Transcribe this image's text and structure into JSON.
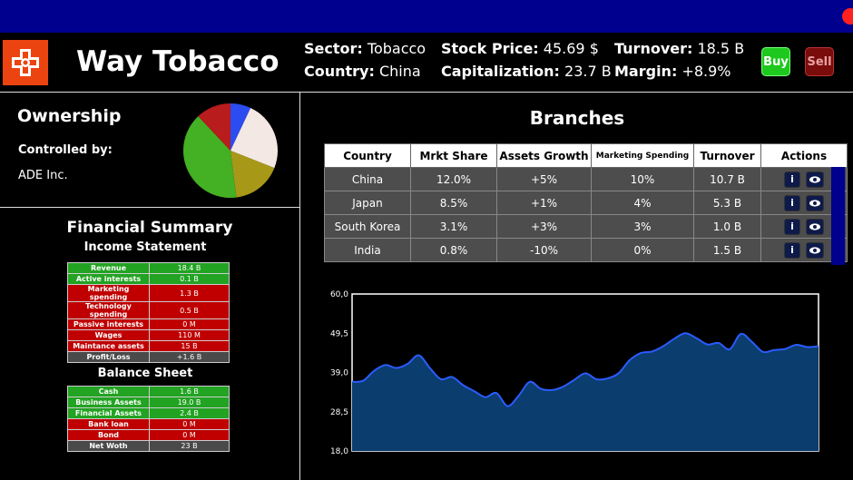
{
  "company": {
    "name": "Way Tobacco"
  },
  "stats": {
    "sector_label": "Sector:",
    "sector": "Tobacco",
    "country_label": "Country:",
    "country": "China",
    "price_label": "Stock Price:",
    "price": "45.69 $",
    "cap_label": "Capitalization:",
    "cap": "23.7 B",
    "turnover_label": "Turnover:",
    "turnover": "18.5 B",
    "margin_label": "Margin:",
    "margin": "+8.9%"
  },
  "buttons": {
    "buy": "Buy",
    "sell": "Sell"
  },
  "colors": {
    "buy": "#1ec81e",
    "sell": "#7a0c0c",
    "topbar": "#00008f",
    "logo": "#ec4410",
    "positive": "#22a322",
    "negative": "#c00000"
  },
  "ownership": {
    "title": "Ownership",
    "controlled_label": "Controlled by:",
    "controlled_value": "ADE Inc.",
    "pie_colors": [
      "#2a4cf0",
      "#f4e8e4",
      "#a89818",
      "#44b024",
      "#b81c1c"
    ],
    "pie_shares": [
      0.07,
      0.24,
      0.17,
      0.4,
      0.12
    ]
  },
  "financial": {
    "title": "Financial Summary",
    "income_title": "Income Statement",
    "income": [
      {
        "k": "Revenue",
        "v": "18.4 B",
        "s": "g"
      },
      {
        "k": "Active interests",
        "v": "0.1 B",
        "s": "g"
      },
      {
        "k": "Marketing spending",
        "v": "1.3 B",
        "s": "r"
      },
      {
        "k": "Technology spending",
        "v": "0.5 B",
        "s": "r"
      },
      {
        "k": "Passive interests",
        "v": "0 M",
        "s": "r"
      },
      {
        "k": "Wages",
        "v": "110 M",
        "s": "r"
      },
      {
        "k": "Maintance assets",
        "v": "15 B",
        "s": "r"
      },
      {
        "k": "Profit/Loss",
        "v": "+1.6 B",
        "s": "n"
      }
    ],
    "balance_title": "Balance Sheet",
    "balance": [
      {
        "k": "Cash",
        "v": "1.6 B",
        "s": "g"
      },
      {
        "k": "Business Assets",
        "v": "19.0 B",
        "s": "g"
      },
      {
        "k": "Financial Assets",
        "v": "2.4 B",
        "s": "g"
      },
      {
        "k": "Bank loan",
        "v": "0 M",
        "s": "r"
      },
      {
        "k": "Bond",
        "v": "0 M",
        "s": "r"
      },
      {
        "k": "Net Woth",
        "v": "23 B",
        "s": "n"
      }
    ]
  },
  "branches": {
    "title": "Branches",
    "headers": [
      "Country",
      "Mrkt Share",
      "Assets Growth",
      "Marketing Spending",
      "Turnover",
      "Actions"
    ],
    "rows": [
      [
        "China",
        "12.0%",
        "+5%",
        "10%",
        "10.7 B"
      ],
      [
        "Japan",
        "8.5%",
        "+1%",
        "4%",
        "5.3 B"
      ],
      [
        "South Korea",
        "3.1%",
        "+3%",
        "3%",
        "1.0 B"
      ],
      [
        "India",
        "0.8%",
        "-10%",
        "0%",
        "1.5 B"
      ]
    ],
    "info_label": "i",
    "view_icon": "eye-icon"
  },
  "chart_data": {
    "type": "area",
    "ylim": [
      18.0,
      60.0
    ],
    "yticks": [
      "60,0",
      "49,5",
      "39,0",
      "28,5",
      "18,0"
    ],
    "x": [
      0,
      1,
      2,
      3,
      4,
      5,
      6,
      7,
      8,
      9,
      10,
      11,
      12,
      13,
      14,
      15,
      16,
      17,
      18,
      19,
      20,
      21,
      22,
      23,
      24,
      25,
      26,
      27,
      28,
      29,
      30,
      31,
      32,
      33,
      34,
      35,
      36,
      37,
      38,
      39,
      40,
      41,
      42
    ],
    "values": [
      36.5,
      36.8,
      39.5,
      41.0,
      40.2,
      41.3,
      43.6,
      40.2,
      37.2,
      37.8,
      35.6,
      34.0,
      32.4,
      33.5,
      30.0,
      32.8,
      36.5,
      34.6,
      34.3,
      35.2,
      37.0,
      38.8,
      37.2,
      37.4,
      38.8,
      42.3,
      44.2,
      44.6,
      46.0,
      48.0,
      49.5,
      48.2,
      46.5,
      46.9,
      45.2,
      49.3,
      47.2,
      44.5,
      45.0,
      45.3,
      46.4,
      45.8,
      46.0
    ],
    "fill": "#0b3d6e",
    "line": "#2a5cff"
  }
}
